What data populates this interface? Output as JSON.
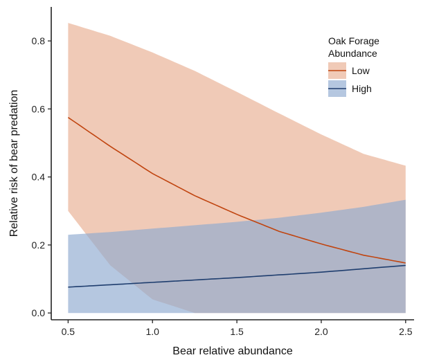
{
  "chart_data": {
    "type": "line",
    "xlabel": "Bear relative abundance",
    "ylabel": "Relative risk of bear predation",
    "xlim": [
      0.4,
      2.55
    ],
    "ylim": [
      -0.02,
      0.9
    ],
    "xticks": [
      "0.5",
      "1.0",
      "1.5",
      "2.0",
      "2.5"
    ],
    "yticks": [
      "0.0",
      "0.2",
      "0.4",
      "0.6",
      "0.8"
    ],
    "legend": {
      "title_lines": [
        "Oak Forage",
        "Abundance"
      ],
      "position": "top-right"
    },
    "grid": false,
    "series": [
      {
        "name": "Low",
        "color": "#c0440f",
        "band_color": "#e8ad91",
        "x": [
          0.5,
          0.75,
          1.0,
          1.25,
          1.5,
          1.75,
          2.0,
          2.25,
          2.5
        ],
        "y": [
          0.575,
          0.49,
          0.41,
          0.345,
          0.29,
          0.24,
          0.203,
          0.17,
          0.147
        ],
        "lower": [
          0.3,
          0.14,
          0.04,
          0.0,
          0.0,
          0.0,
          0.0,
          0.0,
          0.0
        ],
        "upper": [
          0.853,
          0.815,
          0.766,
          0.712,
          0.65,
          0.587,
          0.525,
          0.468,
          0.433
        ]
      },
      {
        "name": "High",
        "color": "#1e3d6e",
        "band_color": "#8ea9cf",
        "x": [
          0.5,
          0.75,
          1.0,
          1.25,
          1.5,
          1.75,
          2.0,
          2.25,
          2.5
        ],
        "y": [
          0.076,
          0.083,
          0.09,
          0.097,
          0.104,
          0.112,
          0.12,
          0.13,
          0.14
        ],
        "lower": [
          0.0,
          0.0,
          0.0,
          0.0,
          0.0,
          0.0,
          0.0,
          0.0,
          0.0
        ],
        "upper": [
          0.23,
          0.238,
          0.248,
          0.258,
          0.268,
          0.28,
          0.295,
          0.312,
          0.333
        ]
      }
    ]
  }
}
